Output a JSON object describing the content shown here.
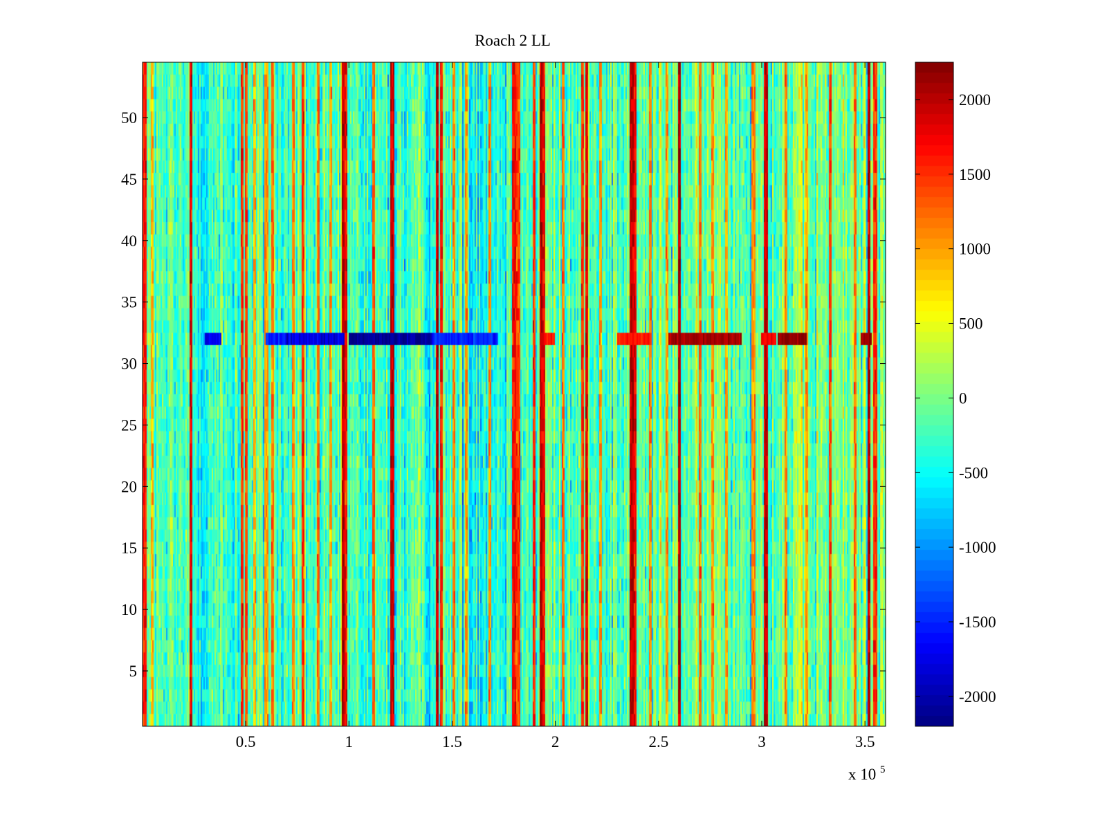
{
  "chart_data": {
    "type": "heatmap",
    "title": "Roach 2 LL",
    "xlabel": "",
    "ylabel": "",
    "x_exponent_label": "x 10",
    "x_exponent_power": "5",
    "xlim": [
      0,
      360000
    ],
    "ylim": [
      0.5,
      54.5
    ],
    "x_ticks": [
      {
        "value": 50000,
        "label": "0.5"
      },
      {
        "value": 100000,
        "label": "1"
      },
      {
        "value": 150000,
        "label": "1.5"
      },
      {
        "value": 200000,
        "label": "2"
      },
      {
        "value": 250000,
        "label": "2.5"
      },
      {
        "value": 300000,
        "label": "3"
      },
      {
        "value": 350000,
        "label": "3.5"
      }
    ],
    "y_ticks": [
      {
        "value": 5,
        "label": "5"
      },
      {
        "value": 10,
        "label": "10"
      },
      {
        "value": 15,
        "label": "15"
      },
      {
        "value": 20,
        "label": "20"
      },
      {
        "value": 25,
        "label": "25"
      },
      {
        "value": 30,
        "label": "30"
      },
      {
        "value": 35,
        "label": "35"
      },
      {
        "value": 40,
        "label": "40"
      },
      {
        "value": 45,
        "label": "45"
      },
      {
        "value": 50,
        "label": "50"
      }
    ],
    "rows": 54,
    "colorbar": {
      "colormap": "jet",
      "range": [
        -2200,
        2250
      ],
      "ticks": [
        {
          "value": 2000,
          "label": "2000"
        },
        {
          "value": 1500,
          "label": "1500"
        },
        {
          "value": 1000,
          "label": "1000"
        },
        {
          "value": 500,
          "label": "500"
        },
        {
          "value": 0,
          "label": "0"
        },
        {
          "value": -500,
          "label": "-500"
        },
        {
          "value": -1000,
          "label": "-1000"
        },
        {
          "value": -1500,
          "label": "-1500"
        },
        {
          "value": -2000,
          "label": "-2000"
        }
      ]
    },
    "strong_columns": [
      {
        "x": 1000,
        "value": 1600
      },
      {
        "x": 4500,
        "value": 900
      },
      {
        "x": 23500,
        "value": 1800
      },
      {
        "x": 48000,
        "value": 1500
      },
      {
        "x": 50000,
        "value": 1400
      },
      {
        "x": 54000,
        "value": 900
      },
      {
        "x": 60000,
        "value": 1000
      },
      {
        "x": 63000,
        "value": 1200
      },
      {
        "x": 73000,
        "value": 1100
      },
      {
        "x": 78000,
        "value": 1500
      },
      {
        "x": 85000,
        "value": 1200
      },
      {
        "x": 91000,
        "value": 1000
      },
      {
        "x": 97000,
        "value": 2000
      },
      {
        "x": 98500,
        "value": 1700
      },
      {
        "x": 112000,
        "value": 1300
      },
      {
        "x": 121000,
        "value": 1900
      },
      {
        "x": 143000,
        "value": 2000
      },
      {
        "x": 144500,
        "value": 1600
      },
      {
        "x": 151000,
        "value": 1100
      },
      {
        "x": 157000,
        "value": 1000
      },
      {
        "x": 168000,
        "value": 1100
      },
      {
        "x": 180000,
        "value": 1700
      },
      {
        "x": 182000,
        "value": 1400
      },
      {
        "x": 190000,
        "value": 1500
      },
      {
        "x": 193000,
        "value": 2000
      },
      {
        "x": 194500,
        "value": 1700
      },
      {
        "x": 204000,
        "value": 1200
      },
      {
        "x": 213000,
        "value": 1500
      },
      {
        "x": 215000,
        "value": 1800
      },
      {
        "x": 222000,
        "value": 1000
      },
      {
        "x": 237000,
        "value": 2000
      },
      {
        "x": 238500,
        "value": 1700
      },
      {
        "x": 246000,
        "value": 1100
      },
      {
        "x": 254000,
        "value": 1000
      },
      {
        "x": 260000,
        "value": 2000
      },
      {
        "x": 270000,
        "value": 1200
      },
      {
        "x": 276000,
        "value": 1100
      },
      {
        "x": 283000,
        "value": 1000
      },
      {
        "x": 296000,
        "value": 1100
      },
      {
        "x": 302000,
        "value": 1900
      },
      {
        "x": 312000,
        "value": 1100
      },
      {
        "x": 322000,
        "value": 1000
      },
      {
        "x": 333000,
        "value": 1400
      },
      {
        "x": 345000,
        "value": 1200
      },
      {
        "x": 352000,
        "value": 2000
      },
      {
        "x": 355000,
        "value": 1500
      }
    ],
    "band_row": 32,
    "band_segments": [
      {
        "x0": 30000,
        "x1": 38000,
        "value": -1700
      },
      {
        "x0": 60000,
        "x1": 75000,
        "value": -1500
      },
      {
        "x0": 70000,
        "x1": 98000,
        "value": -1800
      },
      {
        "x0": 100000,
        "x1": 140000,
        "value": -2100
      },
      {
        "x0": 140000,
        "x1": 172000,
        "value": -1500
      },
      {
        "x0": 195000,
        "x1": 200000,
        "value": 1600
      },
      {
        "x0": 230000,
        "x1": 246000,
        "value": 1600
      },
      {
        "x0": 255000,
        "x1": 290000,
        "value": 2100
      },
      {
        "x0": 300000,
        "x1": 307000,
        "value": 1700
      },
      {
        "x0": 308000,
        "x1": 322000,
        "value": 2200
      },
      {
        "x0": 348000,
        "x1": 353000,
        "value": 2100
      }
    ]
  }
}
